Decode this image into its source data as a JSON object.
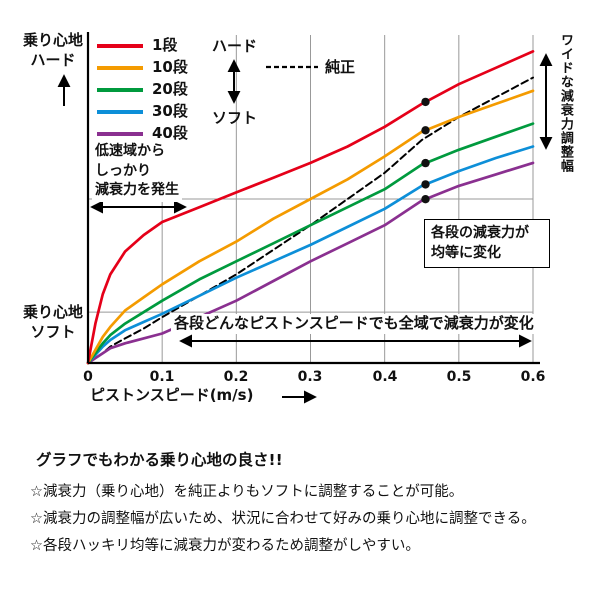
{
  "chart_data": {
    "type": "line",
    "xlabel": "ピストンスピード(m/s)",
    "x_ticks": [
      "0",
      "0.1",
      "0.2",
      "0.3",
      "0.4",
      "0.5",
      "0.6"
    ],
    "xlim": [
      0,
      0.6
    ],
    "ylim": [
      0,
      100
    ],
    "grid": true,
    "legend_position": "top-left",
    "x": [
      0,
      0.01,
      0.02,
      0.03,
      0.05,
      0.075,
      0.1,
      0.15,
      0.2,
      0.25,
      0.3,
      0.35,
      0.4,
      0.45,
      0.5,
      0.55,
      0.6
    ],
    "series": [
      {
        "name": "1段",
        "color": "#e50019",
        "dashed": false,
        "values": [
          0,
          12,
          21,
          27,
          34,
          39,
          43,
          47.5,
          52,
          56.5,
          61,
          66,
          72,
          79,
          85,
          90,
          95
        ]
      },
      {
        "name": "10段",
        "color": "#f49b00",
        "dashed": false,
        "values": [
          0,
          4,
          8,
          11,
          16,
          20,
          24,
          31,
          37,
          44,
          50,
          56,
          63,
          70.5,
          75,
          79,
          83
        ]
      },
      {
        "name": "20段",
        "color": "#009a3e",
        "dashed": false,
        "values": [
          0,
          3,
          6,
          8.5,
          12,
          15.5,
          19,
          25.5,
          31,
          36.5,
          42,
          47.5,
          53,
          60.5,
          65,
          69,
          73
        ]
      },
      {
        "name": "30段",
        "color": "#0d8fd8",
        "dashed": false,
        "values": [
          0,
          2.5,
          5,
          7,
          10,
          12.5,
          15,
          20.5,
          26,
          31,
          36,
          41.5,
          47,
          54,
          58.5,
          62.5,
          66
        ]
      },
      {
        "name": "40段",
        "color": "#8a3090",
        "dashed": false,
        "values": [
          0,
          1.5,
          3,
          4.5,
          6,
          7.5,
          9,
          14,
          19,
          25,
          31,
          36.5,
          42,
          49.5,
          54,
          57.5,
          61
        ]
      },
      {
        "name": "純正",
        "color": "#000000",
        "dashed": true,
        "values": [
          0,
          1.5,
          3,
          5,
          7.5,
          10.5,
          14,
          20.5,
          27,
          34.5,
          42,
          50,
          58,
          68,
          75,
          81,
          87
        ]
      }
    ],
    "marker_x": 0.455,
    "hgrid_values": [
      50,
      15.5
    ]
  },
  "labels": {
    "y_top": [
      "乗り心地",
      "ハード"
    ],
    "y_bottom": [
      "乗り心地",
      "ソフト"
    ],
    "hard": "ハード",
    "soft": "ソフト",
    "stock": "純正"
  },
  "annotations": {
    "low_speed": [
      "低速域から",
      "しっかり",
      "減衰力を発生"
    ],
    "equal_change": [
      "各段の減衰力が",
      "均等に変化"
    ],
    "full_range": "各段どんなピストンスピードでも全域で減衰力が変化",
    "wide_range": "ワイドな減衰力調整幅"
  },
  "footer": {
    "heading": "グラフでもわかる乗り心地の良さ!!",
    "bullets": [
      "☆減衰力（乗り心地）を純正よりもソフトに調整することが可能。",
      "☆減衰力の調整幅が広いため、状況に合わせて好みの乗り心地に調整できる。",
      "☆各段ハッキリ均等に減衰力が変わるため調整がしやすい。"
    ]
  }
}
